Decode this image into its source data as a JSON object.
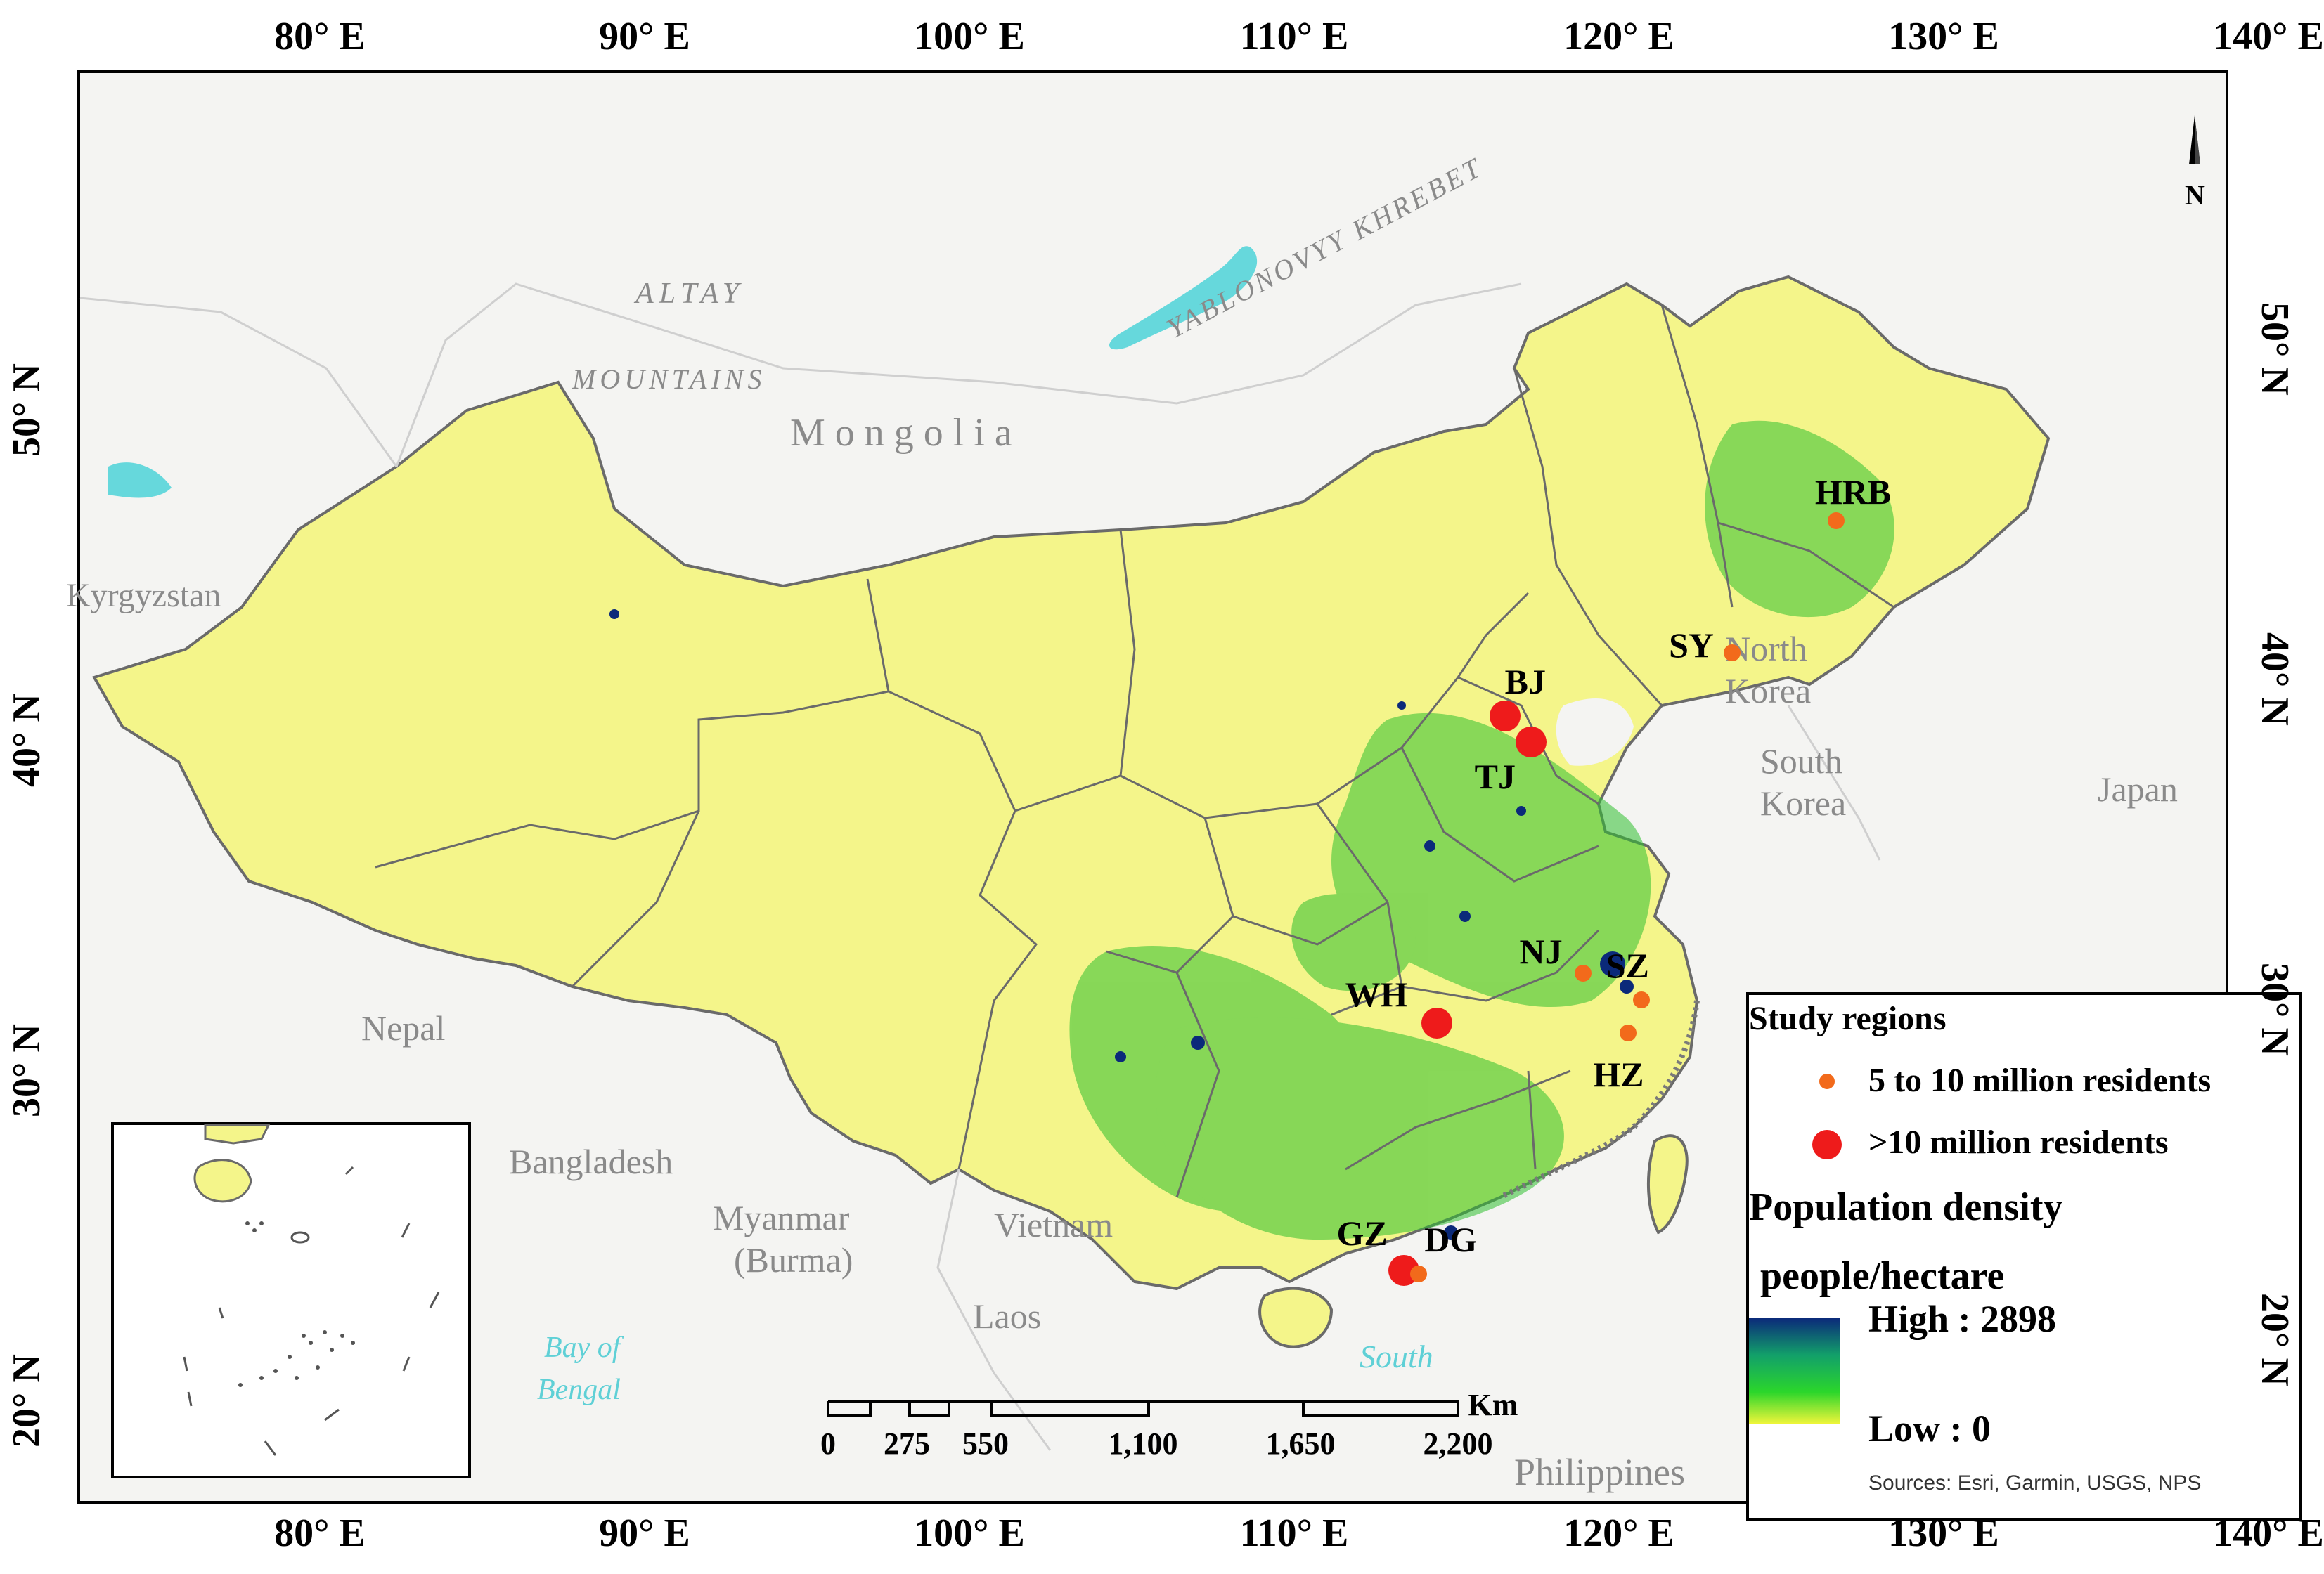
{
  "lon_ticks": [
    "80° E",
    "90° E",
    "100° E",
    "110° E",
    "120° E",
    "130° E",
    "140° E"
  ],
  "lat_ticks": [
    "50° N",
    "40° N",
    "30° N",
    "20° N"
  ],
  "geo_labels": {
    "altay": "ALTAY",
    "mountains": "MOUNTAINS",
    "yablonovyy": "YABLONOVYY KHREBET",
    "mongolia": "M o n g o l i a",
    "kyrgyzstan": "Kyrgyzstan",
    "north_korea_1": "North",
    "north_korea_2": "Korea",
    "south_korea_1": "South",
    "south_korea_2": "Korea",
    "japan": "Japan",
    "nepal": "Nepal",
    "bangladesh": "Bangladesh",
    "myanmar_1": "Myanmar",
    "myanmar_2": "(Burma)",
    "vietnam": "Vietnam",
    "laos": "Laos",
    "bay_1": "Bay of",
    "bay_2": "Bengal",
    "south": "South",
    "philippines": "Philippines"
  },
  "cities": [
    {
      "code": "HRB",
      "lon": 126.6,
      "lat": 45.8,
      "size": "medium"
    },
    {
      "code": "SY",
      "lon": 123.4,
      "lat": 41.8,
      "size": "medium"
    },
    {
      "code": "BJ",
      "lon": 116.4,
      "lat": 39.9,
      "size": "large"
    },
    {
      "code": "TJ",
      "lon": 117.2,
      "lat": 39.1,
      "size": "large"
    },
    {
      "code": "NJ",
      "lon": 118.8,
      "lat": 32.1,
      "size": "medium"
    },
    {
      "code": "SZ",
      "lon": 120.6,
      "lat": 31.3,
      "size": "medium"
    },
    {
      "code": "HZ",
      "lon": 120.2,
      "lat": 30.3,
      "size": "medium"
    },
    {
      "code": "WH",
      "lon": 114.3,
      "lat": 30.6,
      "size": "large"
    },
    {
      "code": "GZ",
      "lon": 113.3,
      "lat": 23.1,
      "size": "large"
    },
    {
      "code": "DG",
      "lon": 113.75,
      "lat": 23.0,
      "size": "medium"
    }
  ],
  "legend": {
    "title": "Study regions",
    "item_medium": "5 to 10 million residents",
    "item_large": ">10 million residents",
    "density_title": "Population density",
    "density_unit": "people/hectare",
    "high": "High : 2898",
    "low": "Low : 0"
  },
  "colors": {
    "land_base": "#f4f58a",
    "dense_green": "#2fbf2f",
    "high_density": "#0b2a7a",
    "water": "#66d8dc",
    "city_medium": "#f26a1b",
    "city_large": "#ee1b1b",
    "boundary": "#6a6a6a"
  },
  "scale_bar": {
    "labels": [
      "0",
      "275",
      "550",
      "1,100",
      "1,650",
      "2,200"
    ],
    "unit": "Km"
  },
  "north_arrow": "N",
  "sources": "Sources: Esri, Garmin, USGS, NPS"
}
